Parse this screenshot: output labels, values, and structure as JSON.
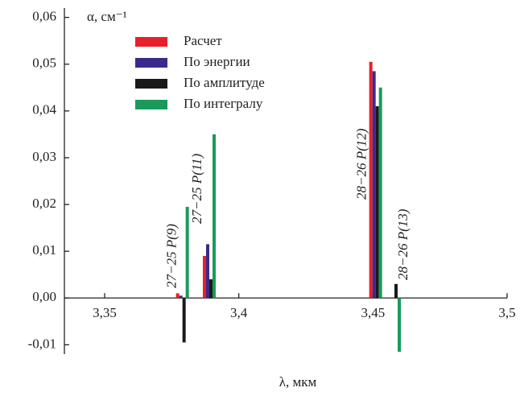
{
  "chart_data": {
    "type": "bar",
    "ylabel": "α, см⁻¹",
    "xlabel": "λ, мкм",
    "x": [
      3.379,
      3.389,
      3.451,
      3.458
    ],
    "annotations": [
      "27−25 P(9)",
      "27−25 P(11)",
      "28−26 P(12)",
      "28−26 P(13)"
    ],
    "series": [
      {
        "name": "Расчет",
        "color": "#e8202a",
        "values": [
          0.001,
          0.009,
          0.0505,
          0.0
        ]
      },
      {
        "name": "По энергии",
        "color": "#3b2a8c",
        "values": [
          0.0005,
          0.0115,
          0.0485,
          0.0
        ]
      },
      {
        "name": "По амплитуде",
        "color": "#1a1a1a",
        "values": [
          -0.0095,
          0.004,
          0.041,
          0.003
        ]
      },
      {
        "name": "По интегралу",
        "color": "#1a9a5a",
        "values": [
          0.0195,
          0.035,
          0.045,
          -0.0115
        ]
      }
    ],
    "xlim": [
      3.335,
      3.5
    ],
    "xticks": [
      {
        "value": 3.35,
        "label": "3,35"
      },
      {
        "value": 3.4,
        "label": "3,4"
      },
      {
        "value": 3.45,
        "label": "3,45"
      },
      {
        "value": 3.5,
        "label": "3,5"
      }
    ],
    "ylim": [
      -0.012,
      0.062
    ],
    "yticks": [
      {
        "value": -0.01,
        "label": "-0,01"
      },
      {
        "value": 0,
        "label": "0,00"
      },
      {
        "value": 0.01,
        "label": "0,01"
      },
      {
        "value": 0.02,
        "label": "0,02"
      },
      {
        "value": 0.03,
        "label": "0,03"
      },
      {
        "value": 0.04,
        "label": "0,04"
      },
      {
        "value": 0.05,
        "label": "0,05"
      },
      {
        "value": 0.06,
        "label": "0,06"
      }
    ],
    "legend": "upper-left",
    "grid": false
  }
}
